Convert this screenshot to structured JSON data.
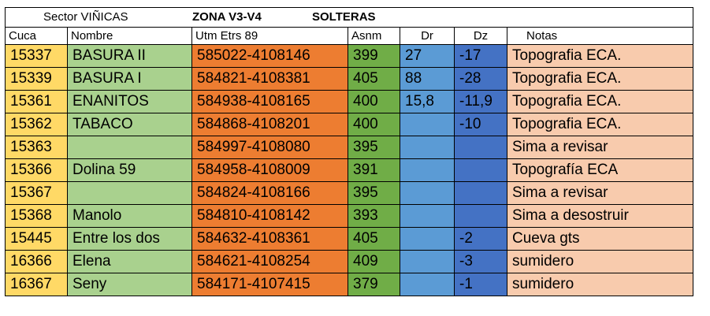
{
  "title": {
    "sector": "Sector VIÑICAS",
    "zona": "ZONA V3-V4",
    "subzona": "SOLTERAS"
  },
  "headers": [
    "Cuca",
    "Nombre",
    "Utm Etrs 89",
    "Asnm",
    "Dr",
    "Dz",
    "Notas"
  ],
  "rows": [
    {
      "cuca": "15337",
      "nombre": "BASURA II",
      "utm": "585022-4108146",
      "asnm": "399",
      "dr": "27",
      "dz": "-17",
      "notas": "Topografia ECA."
    },
    {
      "cuca": "15339",
      "nombre": "BASURA I",
      "utm": "584821-4108381",
      "asnm": "405",
      "dr": "88",
      "dz": "-28",
      "notas": "Topografia ECA."
    },
    {
      "cuca": "15361",
      "nombre": "ENANITOS",
      "utm": "584938-4108165",
      "asnm": "400",
      "dr": "15,8",
      "dz": "-11,9",
      "notas": "Topografia ECA."
    },
    {
      "cuca": "15362",
      "nombre": "TABACO",
      "utm": "584868-4108201",
      "asnm": "400",
      "dr": "",
      "dz": "-10",
      "notas": "Topografia ECA."
    },
    {
      "cuca": "15363",
      "nombre": "",
      "utm": "584997-4108080",
      "asnm": "395",
      "dr": "",
      "dz": "",
      "notas": "Sima a revisar"
    },
    {
      "cuca": "15366",
      "nombre": "Dolina 59",
      "utm": "584958-4108009",
      "asnm": "391",
      "dr": "",
      "dz": "",
      "notas": "Topografía ECA"
    },
    {
      "cuca": "15367",
      "nombre": "",
      "utm": "584824-4108166",
      "asnm": "395",
      "dr": "",
      "dz": "",
      "notas": "Sima a revisar"
    },
    {
      "cuca": "15368",
      "nombre": "Manolo",
      "utm": "584810-4108142",
      "asnm": "393",
      "dr": "",
      "dz": "",
      "notas": "Sima a desostruir"
    },
    {
      "cuca": "15445",
      "nombre": "Entre los dos",
      "utm": "584632-4108361",
      "asnm": "405",
      "dr": "",
      "dz": "-2",
      "notas": "Cueva  gts"
    },
    {
      "cuca": "16366",
      "nombre": "Elena",
      "utm": "584621-4108254",
      "asnm": "409",
      "dr": "",
      "dz": "-3",
      "notas": "sumidero"
    },
    {
      "cuca": "16367",
      "nombre": "Seny",
      "utm": "584171-4107415",
      "asnm": "379",
      "dr": "",
      "dz": "-1",
      "notas": "sumidero"
    }
  ]
}
